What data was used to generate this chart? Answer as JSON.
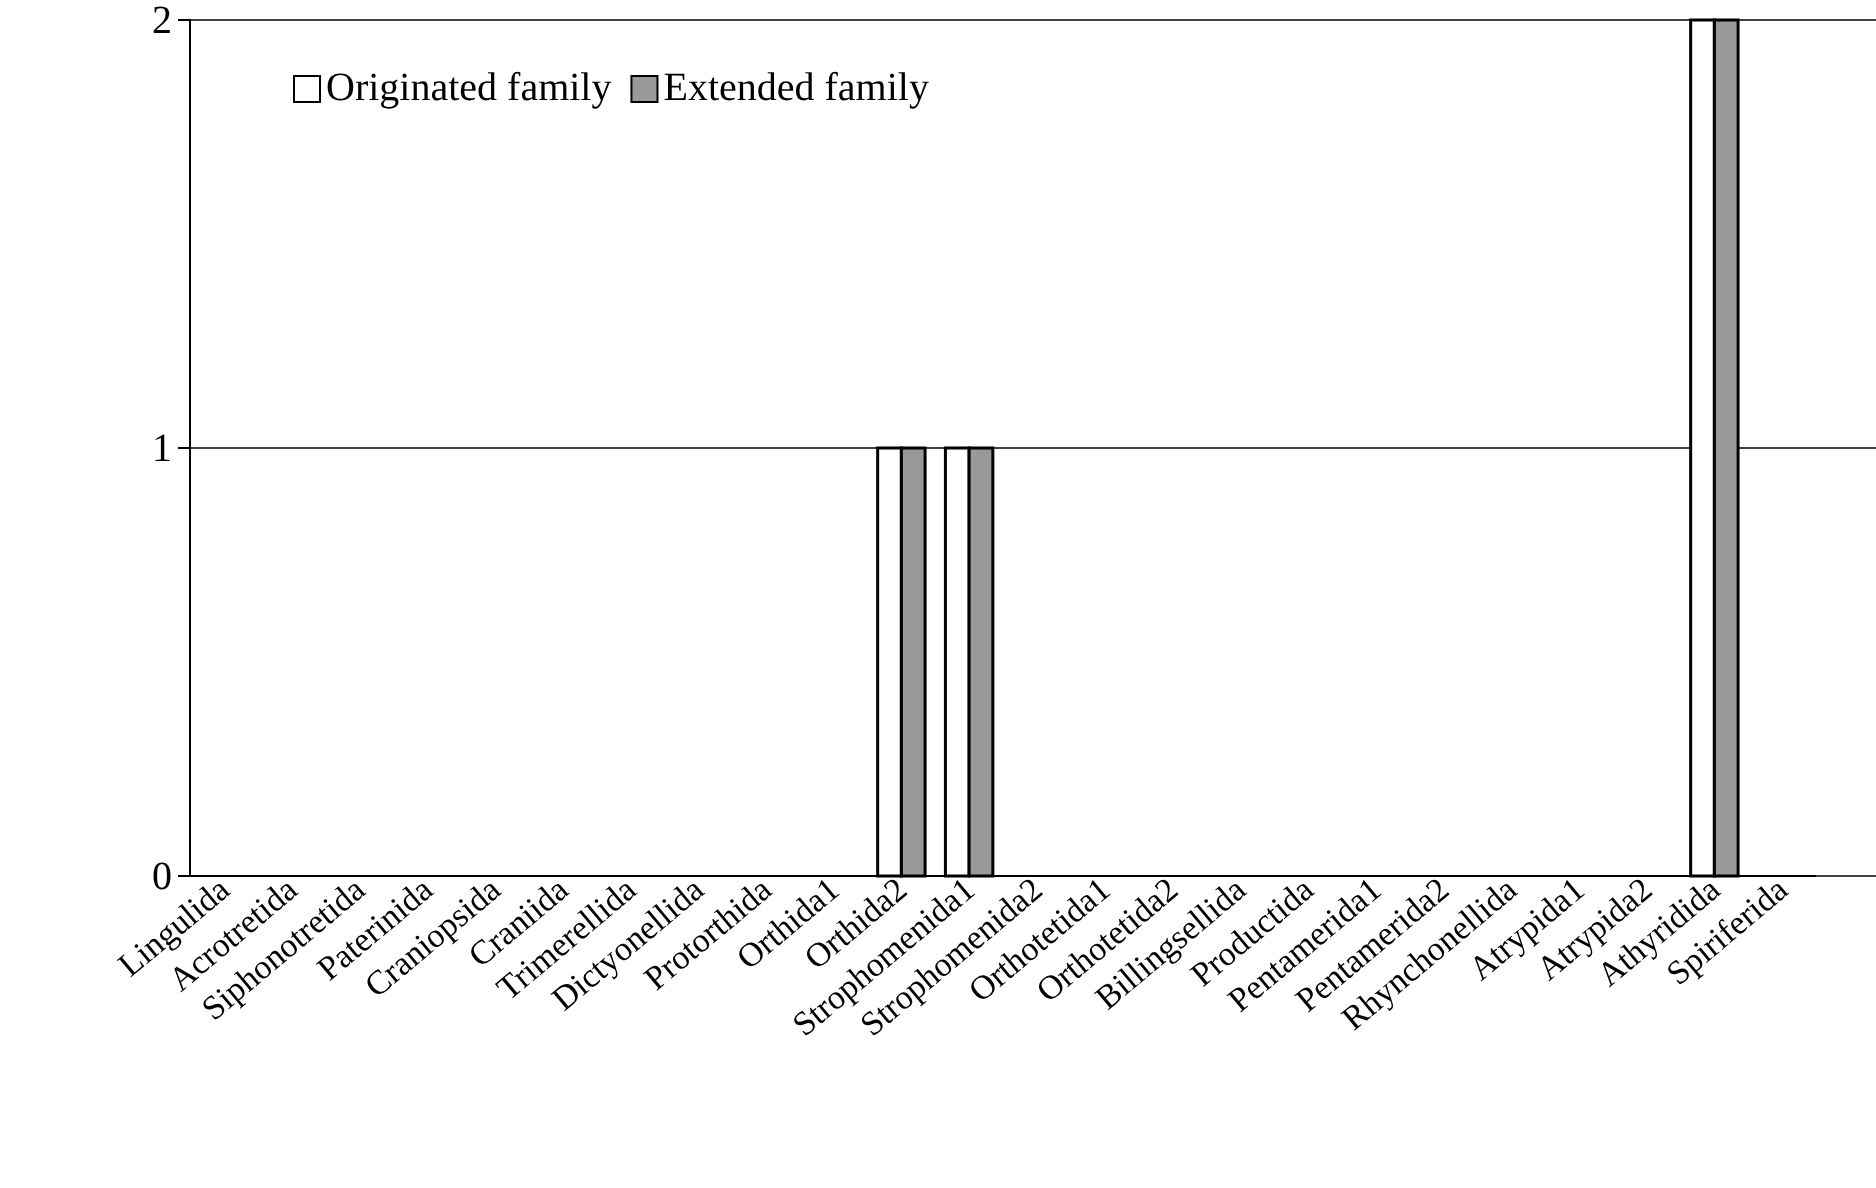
{
  "chart_data": {
    "type": "bar",
    "categories": [
      "Lingulida",
      "Acrotretida",
      "Siphonotretida",
      "Paterinida",
      "Craniopsida",
      "Craniida",
      "Trimerellida",
      "Dictyonellida",
      "Protorthida",
      "Orthida1",
      "Orthida2",
      "Strophomenida1",
      "Strophomenida2",
      "Orthotetida1",
      "Orthotetida2",
      "Billingsellida",
      "Productida",
      "Pentamerida1",
      "Pentamerida2",
      "Rhynchonellida",
      "Atrypida1",
      "Atrypida2",
      "Athyridida",
      "Spiriferida"
    ],
    "series": [
      {
        "name": "Originated family",
        "color": "#ffffff",
        "values": [
          0,
          0,
          0,
          0,
          0,
          0,
          0,
          0,
          0,
          0,
          1,
          1,
          0,
          0,
          0,
          0,
          0,
          0,
          0,
          0,
          0,
          0,
          2,
          0
        ]
      },
      {
        "name": "Extended family",
        "color": "#999999",
        "values": [
          0,
          0,
          0,
          0,
          0,
          0,
          0,
          0,
          0,
          0,
          1,
          1,
          0,
          0,
          0,
          0,
          0,
          0,
          0,
          0,
          0,
          0,
          2,
          0
        ]
      }
    ],
    "ylim": [
      0,
      2
    ],
    "yticks": [
      0,
      1,
      2
    ],
    "grid": "y",
    "legend": "top left"
  }
}
